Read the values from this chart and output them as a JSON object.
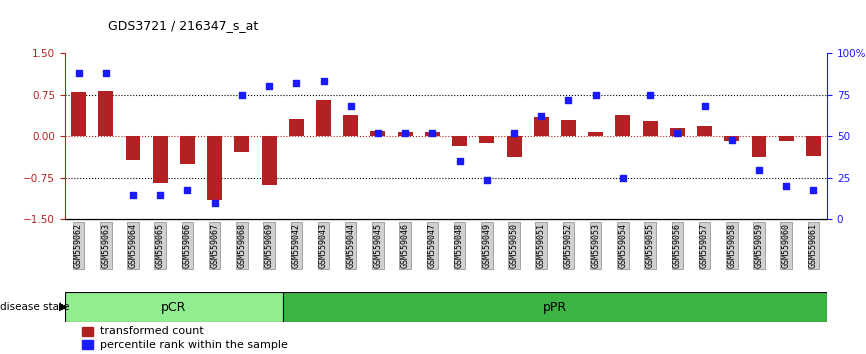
{
  "title": "GDS3721 / 216347_s_at",
  "samples": [
    "GSM559062",
    "GSM559063",
    "GSM559064",
    "GSM559065",
    "GSM559066",
    "GSM559067",
    "GSM559068",
    "GSM559069",
    "GSM559042",
    "GSM559043",
    "GSM559044",
    "GSM559045",
    "GSM559046",
    "GSM559047",
    "GSM559048",
    "GSM559049",
    "GSM559050",
    "GSM559051",
    "GSM559052",
    "GSM559053",
    "GSM559054",
    "GSM559055",
    "GSM559056",
    "GSM559057",
    "GSM559058",
    "GSM559059",
    "GSM559060",
    "GSM559061"
  ],
  "transformed_count": [
    0.8,
    0.82,
    -0.42,
    -0.85,
    -0.5,
    -1.15,
    -0.28,
    -0.88,
    0.32,
    0.65,
    0.38,
    0.1,
    0.08,
    0.08,
    -0.18,
    -0.12,
    -0.38,
    0.35,
    0.3,
    0.08,
    0.38,
    0.28,
    0.15,
    0.18,
    -0.08,
    -0.38,
    -0.08,
    -0.35
  ],
  "percentile_rank": [
    88,
    88,
    15,
    15,
    18,
    10,
    75,
    80,
    82,
    83,
    68,
    52,
    52,
    52,
    35,
    24,
    52,
    62,
    72,
    75,
    25,
    75,
    52,
    68,
    48,
    30,
    20,
    18
  ],
  "pCR_count": 8,
  "pPR_count": 20,
  "bar_color": "#b22222",
  "dot_color": "#1a1aff",
  "pCR_color": "#90EE90",
  "pPR_color": "#3CB343",
  "ylim_left": [
    -1.5,
    1.5
  ],
  "ylim_right": [
    0,
    100
  ],
  "yticks_left": [
    -1.5,
    -0.75,
    0,
    0.75,
    1.5
  ],
  "yticks_right": [
    0,
    25,
    50,
    75,
    100
  ],
  "hlines": [
    -0.75,
    0,
    0.75
  ],
  "legend_items": [
    "transformed count",
    "percentile rank within the sample"
  ]
}
